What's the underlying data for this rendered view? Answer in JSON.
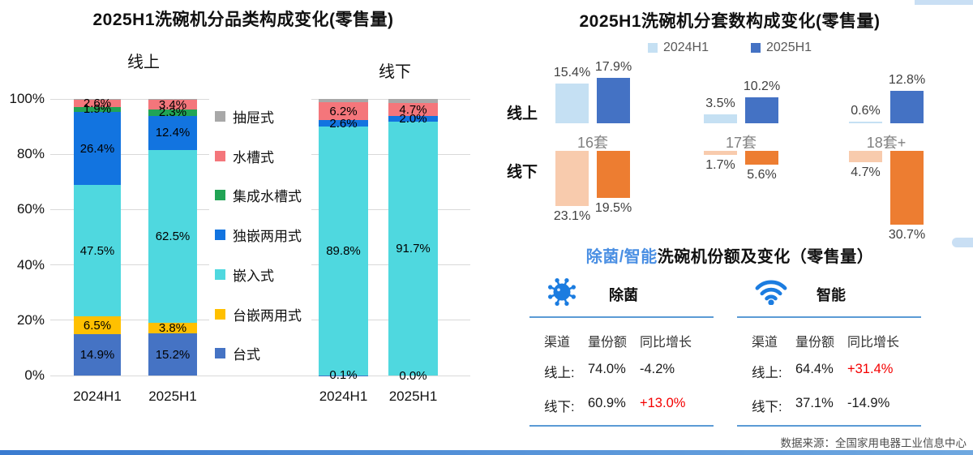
{
  "page": {
    "source_note": "数据来源：全国家用电器工业信息中心",
    "accent_blue": "#4A8FE3",
    "divider_blue": "#5B9BD5",
    "negative_highlight_red": "#F40000"
  },
  "chart_data": [
    {
      "type": "bar",
      "subtype": "stacked-percent",
      "title": "2025H1洗碗机分品类构成变化(零售量)",
      "group_labels": [
        "线上",
        "线下"
      ],
      "y_ticks": [
        "100%",
        "80%",
        "60%",
        "40%",
        "20%",
        "0%"
      ],
      "ylim": [
        0,
        100
      ],
      "grid": true,
      "categories": [
        "2024H1",
        "2025H1",
        "2024H1",
        "2025H1"
      ],
      "series": [
        {
          "name": "台式",
          "color": "#4573C4",
          "values": [
            14.9,
            15.2,
            0.1,
            0.0
          ],
          "labels": [
            "14.9%",
            "15.2%",
            "0.1%",
            "0.0%"
          ]
        },
        {
          "name": "台嵌两用式",
          "color": "#FFC000",
          "values": [
            6.5,
            3.8,
            0,
            0
          ],
          "labels": [
            "6.5%",
            "3.8%",
            "",
            ""
          ]
        },
        {
          "name": "嵌入式",
          "color": "#4FD8DF",
          "values": [
            47.5,
            62.5,
            89.8,
            91.7
          ],
          "labels": [
            "47.5%",
            "62.5%",
            "89.8%",
            "91.7%"
          ]
        },
        {
          "name": "独嵌两用式",
          "color": "#1274E0",
          "values": [
            26.4,
            12.4,
            2.6,
            2.0
          ],
          "labels": [
            "26.4%",
            "12.4%",
            "2.6%",
            "2.0%"
          ]
        },
        {
          "name": "集成水槽式",
          "color": "#21A455",
          "values": [
            1.9,
            2.3,
            0,
            0
          ],
          "labels": [
            "1.9%",
            "2.3%",
            "",
            ""
          ]
        },
        {
          "name": "水槽式",
          "color": "#F4767B",
          "values": [
            2.6,
            3.4,
            6.2,
            4.7
          ],
          "labels": [
            "2.6%",
            "3.4%",
            "6.2%",
            "4.7%"
          ]
        },
        {
          "name": "抽屉式",
          "color": "#A8A8A8",
          "values": [
            0.2,
            0.4,
            1.3,
            1.6
          ],
          "labels": [
            "",
            "",
            "",
            ""
          ]
        }
      ],
      "legend_order": [
        "抽屉式",
        "水槽式",
        "集成水槽式",
        "独嵌两用式",
        "嵌入式",
        "台嵌两用式",
        "台式"
      ],
      "legend_position": "middle"
    },
    {
      "type": "bar",
      "subtype": "grouped-mirror",
      "title": "2025H1洗碗机分套数构成变化(零售量)",
      "categories": [
        "16套",
        "17套",
        "18套+"
      ],
      "legend": [
        {
          "name": "2024H1",
          "color": "#C5E0F3"
        },
        {
          "name": "2025H1",
          "color": "#4472C4"
        }
      ],
      "rows": [
        {
          "label": "线上",
          "direction": "up",
          "series": [
            {
              "name": "2024H1",
              "color": "#C5E0F3",
              "values": [
                15.4,
                3.5,
                0.6
              ],
              "labels": [
                "15.4%",
                "3.5%",
                "0.6%"
              ]
            },
            {
              "name": "2025H1",
              "color": "#4472C4",
              "values": [
                17.9,
                10.2,
                12.8
              ],
              "labels": [
                "17.9%",
                "10.2%",
                "12.8%"
              ]
            }
          ]
        },
        {
          "label": "线下",
          "direction": "down",
          "series": [
            {
              "name": "2024H1",
              "color": "#F8CBAD",
              "values": [
                23.1,
                1.7,
                4.7
              ],
              "labels": [
                "23.1%",
                "1.7%",
                "4.7%"
              ]
            },
            {
              "name": "2025H1",
              "color": "#ED7D31",
              "values": [
                19.5,
                5.6,
                30.7
              ],
              "labels": [
                "19.5%",
                "5.6%",
                "30.7%"
              ]
            }
          ]
        }
      ]
    },
    {
      "type": "table",
      "title": {
        "highlight": "除菌/智能",
        "rest": "洗碗机份额及变化（零售量）",
        "highlight_color": "#4A8FE3"
      },
      "icon_color": "#1B7CE0",
      "tables": [
        {
          "name": "除菌",
          "icon": "germ-icon",
          "columns": [
            "渠道",
            "量份额",
            "同比增长"
          ],
          "rows": [
            {
              "channel": "线上:",
              "share": "74.0%",
              "growth": "-4.2%",
              "growth_color": "#1A1A1A"
            },
            {
              "channel": "线下:",
              "share": "60.9%",
              "growth": "+13.0%",
              "growth_color": "#F40000"
            }
          ]
        },
        {
          "name": "智能",
          "icon": "wifi-icon",
          "columns": [
            "渠道",
            "量份额",
            "同比增长"
          ],
          "rows": [
            {
              "channel": "线上:",
              "share": "64.4%",
              "growth": "+31.4%",
              "growth_color": "#F40000"
            },
            {
              "channel": "线下:",
              "share": "37.1%",
              "growth": "-14.9%",
              "growth_color": "#1A1A1A"
            }
          ]
        }
      ]
    }
  ]
}
